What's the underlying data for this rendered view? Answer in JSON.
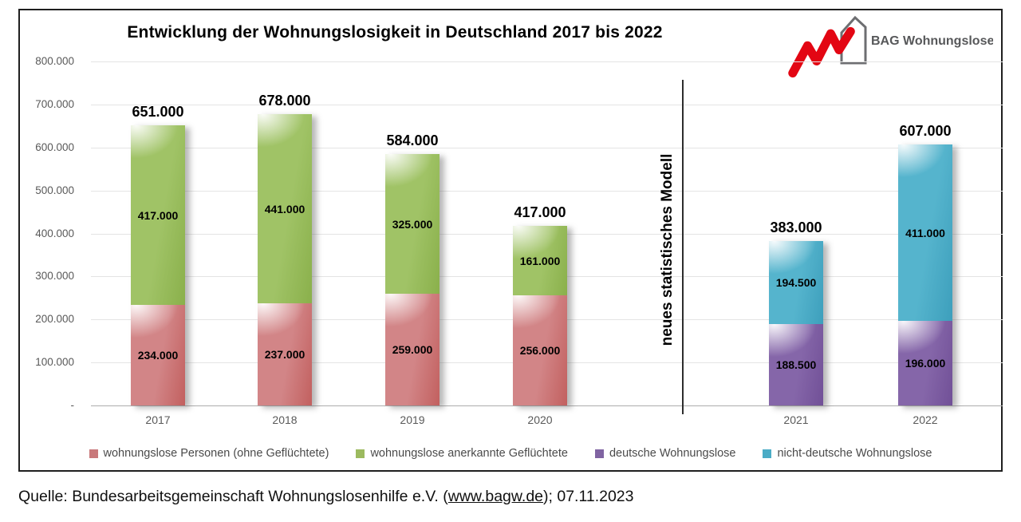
{
  "title": "Entwicklung der Wohnungslosigkeit in Deutschland 2017 bis 2022",
  "logo": {
    "text": "BAG Wohnungslosenhilfe e.V.",
    "swoosh_color": "#e30613",
    "house_color": "#6d6e71"
  },
  "source": {
    "prefix": "Quelle: Bundesarbeitsgemeinschaft Wohnungslosenhilfe e.V. (",
    "link_text": "www.bagw.de",
    "suffix": "); 07.11.2023"
  },
  "chart_data": {
    "type": "bar",
    "stacked": true,
    "grid": true,
    "legend_position": "bottom",
    "title": "Entwicklung der Wohnungslosigkeit in Deutschland 2017 bis 2022",
    "ylim": [
      0,
      800000
    ],
    "ytick_step": 100000,
    "zero_tick_label": "-",
    "categories": [
      "2017",
      "2018",
      "2019",
      "2020",
      "2021",
      "2022"
    ],
    "series": [
      {
        "name": "wohnungslose Personen (ohne Geflüchtete)",
        "color": "#d28587",
        "color_dark": "#c2605f",
        "legend_color": "#c9797b",
        "values": [
          234000,
          237000,
          259000,
          256000,
          null,
          null
        ]
      },
      {
        "name": "wohnungslose anerkannte Geflüchtete",
        "color": "#a0c366",
        "color_dark": "#8ab04b",
        "legend_color": "#9cba5f",
        "values": [
          417000,
          441000,
          325000,
          161000,
          null,
          null
        ]
      },
      {
        "name": "deutsche Wohnungslose",
        "color": "#8566a9",
        "color_dark": "#715097",
        "legend_color": "#8064a2",
        "values": [
          null,
          null,
          null,
          null,
          188500,
          196000
        ]
      },
      {
        "name": "nicht-deutsche Wohnungslose",
        "color": "#55b4cd",
        "color_dark": "#3d9fbc",
        "legend_color": "#4bacc6",
        "values": [
          null,
          null,
          null,
          null,
          194500,
          411000
        ]
      }
    ],
    "totals": [
      651000,
      678000,
      584000,
      417000,
      383000,
      607000
    ],
    "annotation": {
      "text": "neues statistisches Modell",
      "between": [
        "2020",
        "2021"
      ]
    }
  }
}
